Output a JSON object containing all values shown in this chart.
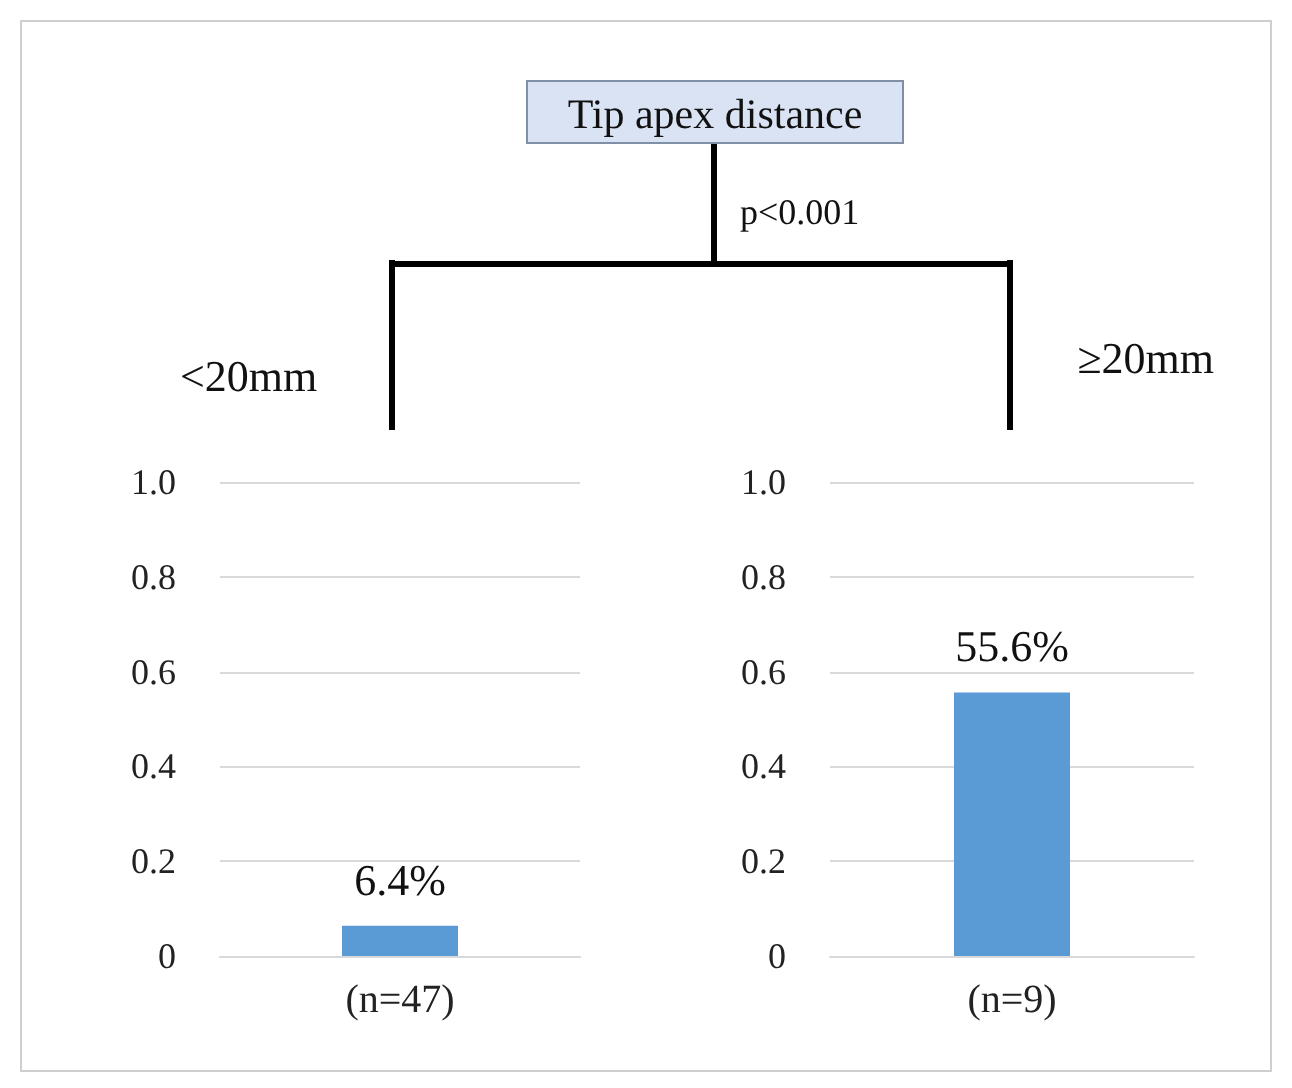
{
  "chart_data": [
    {
      "type": "other",
      "title": "Tip apex distance",
      "annotations": [
        "p<0.001"
      ]
    },
    {
      "type": "bar",
      "title": "<20mm",
      "categories": [
        "(n=47)"
      ],
      "values": [
        0.064
      ],
      "color": "#5b9bd5",
      "value_labels": [
        "6.4%"
      ],
      "ylim": [
        0,
        1
      ],
      "yticks": [
        0,
        0.2,
        0.4,
        0.6,
        0.8,
        {
          "value": 1,
          "label": "1.0"
        }
      ],
      "grid": "y"
    },
    {
      "type": "bar",
      "title": "≥20mm",
      "categories": [
        "(n=9)"
      ],
      "values": [
        0.556
      ],
      "color": "#5b9bd5",
      "value_labels": [
        "55.6%"
      ],
      "ylim": [
        0,
        1
      ],
      "yticks": [
        0,
        0.2,
        0.4,
        0.6,
        0.8,
        {
          "value": 1,
          "label": "1.0"
        }
      ],
      "grid": "y"
    }
  ]
}
